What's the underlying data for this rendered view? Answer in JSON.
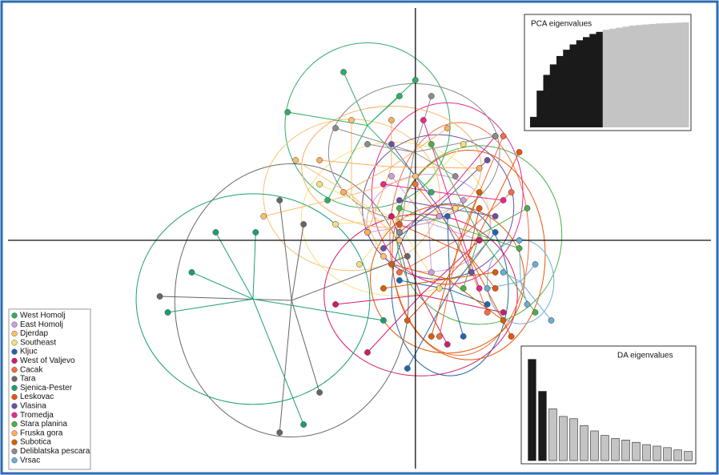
{
  "chart_data": [
    {
      "type": "scatter",
      "xlim": [
        -51,
        37
      ],
      "ylim": [
        -28.5,
        29
      ],
      "legend": "bottom-left",
      "axes_cross": true,
      "series": [
        {
          "name": "West Homolj",
          "color": "#2fae64",
          "x": [
            -9,
            -2,
            -16,
            -11,
            2,
            0
          ],
          "y": [
            21,
            18,
            16,
            5,
            6,
            20
          ]
        },
        {
          "name": "East Homolj",
          "color": "#c9a0dc",
          "x": [
            -3,
            6,
            2,
            -6,
            8,
            3
          ],
          "y": [
            8,
            5,
            -4,
            1,
            0,
            3
          ]
        },
        {
          "name": "Djerdap",
          "color": "#fdbf6f",
          "x": [
            -15,
            -19,
            -8,
            0,
            -4,
            -2
          ],
          "y": [
            10,
            3,
            15,
            8,
            -2,
            0
          ]
        },
        {
          "name": "Southeast",
          "color": "#f7e07a",
          "x": [
            -12,
            6,
            -7,
            3,
            -10,
            5
          ],
          "y": [
            7,
            12,
            -3,
            -6,
            2,
            4
          ]
        },
        {
          "name": "Kljuc",
          "color": "#2166ac",
          "x": [
            -1,
            9,
            10,
            -2,
            6,
            4
          ],
          "y": [
            -16,
            -8,
            1,
            -5,
            -12,
            3
          ]
        },
        {
          "name": "West of Valjevo",
          "color": "#d01c6b",
          "x": [
            -10,
            4,
            11,
            -3,
            8,
            -6
          ],
          "y": [
            -8,
            -13,
            -9,
            3,
            0,
            -14
          ]
        },
        {
          "name": "Cacak",
          "color": "#f46d43",
          "x": [
            11,
            12,
            -2,
            9,
            3,
            0
          ],
          "y": [
            13,
            6,
            -4,
            -9,
            -12,
            7
          ]
        },
        {
          "name": "Tara",
          "color": "#666666",
          "x": [
            -17,
            -32,
            -12,
            -17,
            -1,
            -14
          ],
          "y": [
            5,
            -7,
            -19,
            -24,
            -2,
            2
          ]
        },
        {
          "name": "Sjenica-Pester",
          "color": "#1b9e77",
          "x": [
            -31,
            -28,
            -14,
            -20,
            -4,
            -25
          ],
          "y": [
            -9,
            -4,
            -23,
            1,
            -10,
            1
          ]
        },
        {
          "name": "Leskovac",
          "color": "#e6550d",
          "x": [
            13,
            10,
            -1,
            8,
            12,
            -2
          ],
          "y": [
            11,
            -6,
            -10,
            4,
            -12,
            2
          ]
        },
        {
          "name": "Vlasina",
          "color": "#6a51a3",
          "x": [
            9,
            -3,
            7,
            -4,
            10,
            -2
          ],
          "y": [
            10,
            12,
            -4,
            -1,
            3,
            5
          ]
        },
        {
          "name": "Tromedja",
          "color": "#e7298a",
          "x": [
            10,
            -2,
            8,
            1,
            11,
            -4
          ],
          "y": [
            13,
            1,
            -6,
            15,
            5,
            7
          ]
        },
        {
          "name": "Stara planina",
          "color": "#4daf4a",
          "x": [
            14,
            2,
            15,
            6,
            -2,
            13
          ],
          "y": [
            4,
            12,
            -9,
            -6,
            4,
            -1
          ]
        },
        {
          "name": "Fruska gora",
          "color": "#fdae61",
          "x": [
            -12,
            4,
            -6,
            8,
            -3,
            -9
          ],
          "y": [
            10,
            14,
            1,
            9,
            15,
            6
          ]
        },
        {
          "name": "Subotica",
          "color": "#d95f02",
          "x": [
            11,
            -3,
            8,
            2,
            10,
            -4
          ],
          "y": [
            -10,
            -3,
            6,
            -12,
            -4,
            -6
          ]
        },
        {
          "name": "Deliblatska pescara",
          "color": "#8c8c8c",
          "x": [
            2,
            -6,
            10,
            -2,
            5,
            -10
          ],
          "y": [
            18,
            12,
            13,
            1,
            8,
            14
          ]
        },
        {
          "name": "Vrsac",
          "color": "#6baed6",
          "x": [
            14,
            17,
            13,
            11,
            15,
            9
          ],
          "y": [
            -8,
            -10,
            0,
            -4,
            -3,
            -6
          ]
        }
      ]
    },
    {
      "type": "area-bar",
      "title": "PCA eigenvalues",
      "values": [
        0.1,
        0.35,
        0.5,
        0.6,
        0.68,
        0.74,
        0.79,
        0.83,
        0.86,
        0.89,
        0.91,
        0.93,
        0.94,
        0.95,
        0.96,
        0.97,
        0.975,
        0.98,
        0.985,
        0.99,
        0.992,
        0.995,
        0.998,
        1.0
      ],
      "ylim": [
        0,
        1
      ],
      "retained": 11,
      "colors": [
        "#1a1a1a",
        "#c4c4c4"
      ]
    },
    {
      "type": "bar",
      "title": "DA eigenvalues",
      "values": [
        133,
        91,
        68,
        58,
        55,
        46,
        39,
        33,
        29,
        27,
        24,
        21,
        19,
        17,
        14,
        12
      ],
      "ylim": [
        0,
        140
      ],
      "retained": 2,
      "colors": [
        "#1a1a1a",
        "#c4c4c4"
      ]
    }
  ]
}
